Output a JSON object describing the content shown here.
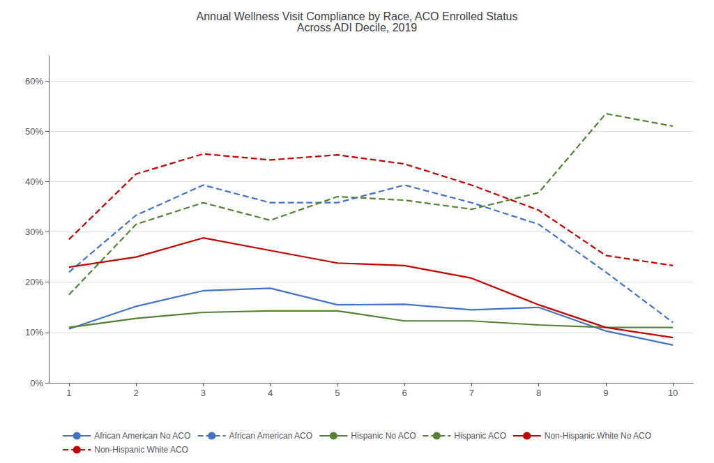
{
  "chart_data": {
    "type": "line",
    "title": "Annual Wellness Visit Compliance by Race, ACO Enrolled Status\nAcross ADI Decile, 2019",
    "x": [
      1,
      2,
      3,
      4,
      5,
      6,
      7,
      8,
      9,
      10
    ],
    "series": [
      {
        "name": "African American No ACO",
        "values": [
          0.107,
          0.152,
          0.183,
          0.188,
          0.155,
          0.156,
          0.145,
          0.15,
          0.103,
          0.075
        ],
        "color": "#4472C4",
        "line_style": "solid"
      },
      {
        "name": "African American ACO",
        "values": [
          0.22,
          0.333,
          0.393,
          0.358,
          0.358,
          0.393,
          0.358,
          0.315,
          0.22,
          0.12
        ],
        "color": "#4472C4",
        "line_style": "dashed"
      },
      {
        "name": "Hispanic No ACO",
        "values": [
          0.11,
          0.128,
          0.14,
          0.143,
          0.143,
          0.123,
          0.123,
          0.115,
          0.11,
          0.11
        ],
        "color": "#548235",
        "line_style": "solid"
      },
      {
        "name": "Hispanic ACO",
        "values": [
          0.175,
          0.315,
          0.358,
          0.323,
          0.37,
          0.363,
          0.345,
          0.378,
          0.535,
          0.51
        ],
        "color": "#548235",
        "line_style": "dashed"
      },
      {
        "name": "Non-Hispanic White No ACO",
        "values": [
          0.23,
          0.25,
          0.288,
          0.263,
          0.238,
          0.233,
          0.208,
          0.155,
          0.11,
          0.09
        ],
        "color": "#C00000",
        "line_style": "solid"
      },
      {
        "name": "Non-Hispanic White ACO",
        "values": [
          0.285,
          0.415,
          0.455,
          0.443,
          0.453,
          0.435,
          0.393,
          0.343,
          0.253,
          0.233
        ],
        "color": "#C00000",
        "line_style": "dashed"
      }
    ],
    "xlim": [
      0.7,
      10.3
    ],
    "xticks": [
      1,
      2,
      3,
      4,
      5,
      6,
      7,
      8,
      9,
      10
    ],
    "ylim": [
      0,
      0.65
    ],
    "yticks": [
      {
        "value": 0.0,
        "label": "0%"
      },
      {
        "value": 0.1,
        "label": "10%"
      },
      {
        "value": 0.2,
        "label": "20%"
      },
      {
        "value": 0.3,
        "label": "30%"
      },
      {
        "value": 0.4,
        "label": "40%"
      },
      {
        "value": 0.5,
        "label": "50%"
      },
      {
        "value": 0.6,
        "label": "60%"
      }
    ],
    "grid": true,
    "legend": "bottom"
  }
}
